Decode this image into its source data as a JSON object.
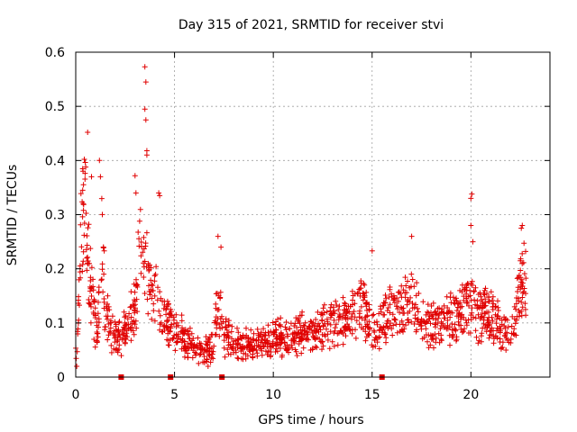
{
  "chart_data": {
    "type": "scatter",
    "title": "Day 315 of 2021, SRMTID for receiver stvi",
    "xlabel": "GPS time / hours",
    "ylabel": "SRMTID / TECUs",
    "xlim": [
      0,
      24
    ],
    "ylim": [
      0,
      0.6
    ],
    "xticks": [
      0,
      5,
      10,
      15,
      20
    ],
    "yticks": [
      0,
      0.1,
      0.2,
      0.3,
      0.4,
      0.5,
      0.6
    ],
    "xtick_labels": [
      "0",
      "5",
      "10",
      "15",
      "20"
    ],
    "ytick_labels": [
      "0",
      "0.1",
      "0.2",
      "0.3",
      "0.4",
      "0.5",
      "0.6"
    ],
    "grid": true,
    "marker": "+",
    "series_color": "#e00000",
    "gap_markers_x": [
      2.3,
      4.8,
      7.4,
      15.5
    ],
    "profile": [
      [
        0.0,
        0.04
      ],
      [
        0.1,
        0.08
      ],
      [
        0.3,
        0.28
      ],
      [
        0.5,
        0.3
      ],
      [
        0.7,
        0.2
      ],
      [
        0.9,
        0.12
      ],
      [
        1.1,
        0.07
      ],
      [
        1.3,
        0.26
      ],
      [
        1.5,
        0.13
      ],
      [
        1.8,
        0.08
      ],
      [
        2.2,
        0.07
      ],
      [
        2.6,
        0.09
      ],
      [
        3.0,
        0.13
      ],
      [
        3.3,
        0.25
      ],
      [
        3.6,
        0.2
      ],
      [
        3.9,
        0.15
      ],
      [
        4.2,
        0.14
      ],
      [
        4.6,
        0.1
      ],
      [
        5.0,
        0.09
      ],
      [
        5.5,
        0.07
      ],
      [
        6.0,
        0.06
      ],
      [
        6.5,
        0.05
      ],
      [
        6.9,
        0.05
      ],
      [
        7.2,
        0.14
      ],
      [
        7.5,
        0.08
      ],
      [
        8.0,
        0.06
      ],
      [
        9.0,
        0.06
      ],
      [
        10.0,
        0.07
      ],
      [
        11.0,
        0.08
      ],
      [
        12.0,
        0.08
      ],
      [
        12.5,
        0.09
      ],
      [
        13.0,
        0.1
      ],
      [
        14.0,
        0.11
      ],
      [
        14.5,
        0.14
      ],
      [
        15.0,
        0.09
      ],
      [
        15.5,
        0.1
      ],
      [
        16.0,
        0.13
      ],
      [
        16.5,
        0.12
      ],
      [
        17.0,
        0.14
      ],
      [
        17.5,
        0.11
      ],
      [
        18.0,
        0.09
      ],
      [
        18.5,
        0.1
      ],
      [
        19.0,
        0.11
      ],
      [
        19.5,
        0.12
      ],
      [
        20.0,
        0.14
      ],
      [
        20.5,
        0.11
      ],
      [
        21.0,
        0.12
      ],
      [
        21.5,
        0.09
      ],
      [
        22.0,
        0.08
      ],
      [
        22.5,
        0.17
      ],
      [
        22.8,
        0.19
      ]
    ],
    "notable_points": [
      [
        0.6,
        0.452
      ],
      [
        1.2,
        0.4
      ],
      [
        1.25,
        0.37
      ],
      [
        0.8,
        0.37
      ],
      [
        0.35,
        0.345
      ],
      [
        3.5,
        0.573
      ],
      [
        3.55,
        0.545
      ],
      [
        3.5,
        0.495
      ],
      [
        3.55,
        0.475
      ],
      [
        3.6,
        0.418
      ],
      [
        3.6,
        0.41
      ],
      [
        3.0,
        0.372
      ],
      [
        3.05,
        0.34
      ],
      [
        4.2,
        0.34
      ],
      [
        4.25,
        0.335
      ],
      [
        7.2,
        0.26
      ],
      [
        7.35,
        0.24
      ],
      [
        20.05,
        0.338
      ],
      [
        20.0,
        0.33
      ],
      [
        20.0,
        0.28
      ],
      [
        20.1,
        0.25
      ],
      [
        22.6,
        0.28
      ],
      [
        22.55,
        0.275
      ],
      [
        15.0,
        0.233
      ],
      [
        17.0,
        0.26
      ],
      [
        0.05,
        0.02
      ],
      [
        6.7,
        0.02
      ]
    ]
  }
}
